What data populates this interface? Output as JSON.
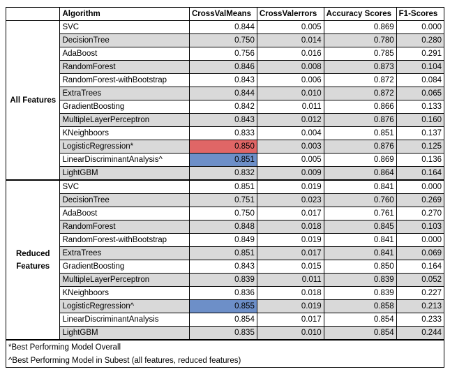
{
  "headers": [
    "",
    "Algorithm",
    "CrossValMeans",
    "CrossValerrors",
    "Accuracy Scores",
    "F1-Scores"
  ],
  "groups": [
    {
      "label": "All Features",
      "rows": [
        {
          "algorithm": "SVC",
          "cv_mean": "0.844",
          "cv_err": "0.005",
          "acc": "0.869",
          "f1": "0.000",
          "gray": false,
          "highlight": ""
        },
        {
          "algorithm": "DecisionTree",
          "cv_mean": "0.750",
          "cv_err": "0.014",
          "acc": "0.780",
          "f1": "0.280",
          "gray": true,
          "highlight": ""
        },
        {
          "algorithm": "AdaBoost",
          "cv_mean": "0.756",
          "cv_err": "0.016",
          "acc": "0.785",
          "f1": "0.291",
          "gray": false,
          "highlight": ""
        },
        {
          "algorithm": "RandomForest",
          "cv_mean": "0.846",
          "cv_err": "0.008",
          "acc": "0.873",
          "f1": "0.104",
          "gray": true,
          "highlight": ""
        },
        {
          "algorithm": "RandomForest-withBootstrap",
          "cv_mean": "0.843",
          "cv_err": "0.006",
          "acc": "0.872",
          "f1": "0.084",
          "gray": false,
          "highlight": ""
        },
        {
          "algorithm": "ExtraTrees",
          "cv_mean": "0.844",
          "cv_err": "0.010",
          "acc": "0.872",
          "f1": "0.065",
          "gray": true,
          "highlight": ""
        },
        {
          "algorithm": "GradientBoosting",
          "cv_mean": "0.842",
          "cv_err": "0.011",
          "acc": "0.866",
          "f1": "0.133",
          "gray": false,
          "highlight": ""
        },
        {
          "algorithm": "MultipleLayerPerceptron",
          "cv_mean": "0.843",
          "cv_err": "0.012",
          "acc": "0.876",
          "f1": "0.160",
          "gray": true,
          "highlight": ""
        },
        {
          "algorithm": "KNeighboors",
          "cv_mean": "0.833",
          "cv_err": "0.004",
          "acc": "0.851",
          "f1": "0.137",
          "gray": false,
          "highlight": ""
        },
        {
          "algorithm": "LogisticRegression*",
          "cv_mean": "0.850",
          "cv_err": "0.003",
          "acc": "0.876",
          "f1": "0.125",
          "gray": true,
          "highlight": "red"
        },
        {
          "algorithm": "LinearDiscriminantAnalysis^",
          "cv_mean": "0.851",
          "cv_err": "0.005",
          "acc": "0.869",
          "f1": "0.136",
          "gray": false,
          "highlight": "blue"
        },
        {
          "algorithm": "LightGBM",
          "cv_mean": "0.832",
          "cv_err": "0.009",
          "acc": "0.864",
          "f1": "0.164",
          "gray": true,
          "highlight": ""
        }
      ]
    },
    {
      "label": "Reduced Features",
      "rows": [
        {
          "algorithm": "SVC",
          "cv_mean": "0.851",
          "cv_err": "0.019",
          "acc": "0.841",
          "f1": "0.000",
          "gray": false,
          "highlight": ""
        },
        {
          "algorithm": "DecisionTree",
          "cv_mean": "0.751",
          "cv_err": "0.023",
          "acc": "0.760",
          "f1": "0.269",
          "gray": true,
          "highlight": ""
        },
        {
          "algorithm": "AdaBoost",
          "cv_mean": "0.750",
          "cv_err": "0.017",
          "acc": "0.761",
          "f1": "0.270",
          "gray": false,
          "highlight": ""
        },
        {
          "algorithm": "RandomForest",
          "cv_mean": "0.848",
          "cv_err": "0.018",
          "acc": "0.845",
          "f1": "0.103",
          "gray": true,
          "highlight": ""
        },
        {
          "algorithm": "RandomForest-withBootstrap",
          "cv_mean": "0.849",
          "cv_err": "0.019",
          "acc": "0.841",
          "f1": "0.000",
          "gray": false,
          "highlight": ""
        },
        {
          "algorithm": "ExtraTrees",
          "cv_mean": "0.851",
          "cv_err": "0.017",
          "acc": "0.841",
          "f1": "0.069",
          "gray": true,
          "highlight": ""
        },
        {
          "algorithm": "GradientBoosting",
          "cv_mean": "0.843",
          "cv_err": "0.015",
          "acc": "0.850",
          "f1": "0.164",
          "gray": false,
          "highlight": ""
        },
        {
          "algorithm": "MultipleLayerPerceptron",
          "cv_mean": "0.839",
          "cv_err": "0.011",
          "acc": "0.839",
          "f1": "0.052",
          "gray": true,
          "highlight": ""
        },
        {
          "algorithm": "KNeighboors",
          "cv_mean": "0.836",
          "cv_err": "0.018",
          "acc": "0.839",
          "f1": "0.227",
          "gray": false,
          "highlight": ""
        },
        {
          "algorithm": "LogisticRegression^",
          "cv_mean": "0.855",
          "cv_err": "0.019",
          "acc": "0.858",
          "f1": "0.213",
          "gray": true,
          "highlight": "blue"
        },
        {
          "algorithm": "LinearDiscriminantAnalysis",
          "cv_mean": "0.854",
          "cv_err": "0.017",
          "acc": "0.854",
          "f1": "0.233",
          "gray": false,
          "highlight": ""
        },
        {
          "algorithm": "LightGBM",
          "cv_mean": "0.835",
          "cv_err": "0.010",
          "acc": "0.854",
          "f1": "0.244",
          "gray": true,
          "highlight": ""
        }
      ]
    }
  ],
  "notes": [
    "*Best Performing Model Overall",
    "^Best Performing Model in Subest (all features, reduced features)"
  ],
  "colors": {
    "gray_row": "#d9d9d9",
    "highlight_red": "#e06666",
    "highlight_blue": "#6d8fc8"
  }
}
